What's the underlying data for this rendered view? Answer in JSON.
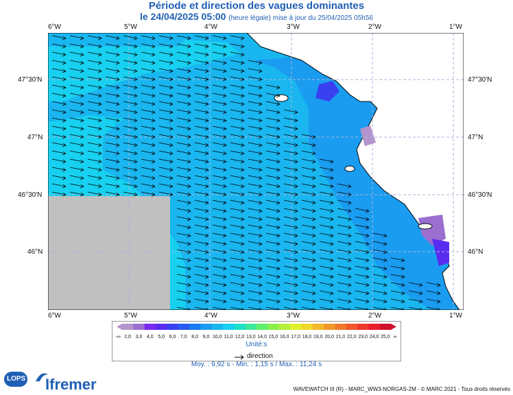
{
  "header": {
    "title": "Période et direction des vagues dominantes",
    "date_line": "le 24/04/2025 05:00",
    "date_note": "(heure légale) mise à jour du 25/04/2025 05h56"
  },
  "axes": {
    "lon_ticks": [
      "6°W",
      "5°W",
      "4°W",
      "3°W",
      "2°W",
      "1°W"
    ],
    "lat_ticks_left": [
      "47°30'N",
      "47°N",
      "46°30'N",
      "46°N"
    ],
    "lat_ticks_right": [
      "47°30'N",
      "47°N",
      "46°30'N",
      "46°N"
    ]
  },
  "legend": {
    "ticks": [
      "-∞",
      "2,0",
      "3,0",
      "4,0",
      "5,0",
      "6,0",
      "7,0",
      "8,0",
      "9,0",
      "10,0",
      "11,0",
      "12,0",
      "13,0",
      "14,0",
      "15,0",
      "16,0",
      "17,0",
      "18,0",
      "19,0",
      "20,0",
      "21,0",
      "22,0",
      "23,0",
      "24,0",
      "25,0",
      "∞"
    ],
    "colors": [
      "#b494cc",
      "#9a6fd0",
      "#7a2bf0",
      "#5a2cf0",
      "#3a40f0",
      "#2a5af0",
      "#1a7af0",
      "#1a9cf0",
      "#19b6f0",
      "#18d0f0",
      "#1ee0c8",
      "#3ce89a",
      "#5ef06a",
      "#8af04a",
      "#b6f03a",
      "#e0f02a",
      "#f0d82a",
      "#f0b82a",
      "#f0982a",
      "#f0782a",
      "#f0582a",
      "#f0382a",
      "#e8202a",
      "#d0102a"
    ],
    "units": "Unité:s",
    "direction_label": "direction"
  },
  "stats": {
    "text": "Moy. : 9,92 s   -   Min. : 1,15 s / Max. : 11,24 s"
  },
  "footer": {
    "credit": "WAVEWATCH III (R) - MARC_WW3-NORGAS-2M - © MARC 2021 - Tous droits réservés",
    "logo_ifremer": "Ifremer",
    "logo_lops": "LOPS"
  },
  "colors": {
    "land": "#ffffff",
    "no_data": "#c0c0c0",
    "sea_main": "#19b6f0",
    "sea_light": "#18d0f0",
    "sea_dark": "#1a7af0",
    "sea_purple": "#b494cc",
    "grid": "#aab4d8",
    "title": "#1f5fb4"
  }
}
